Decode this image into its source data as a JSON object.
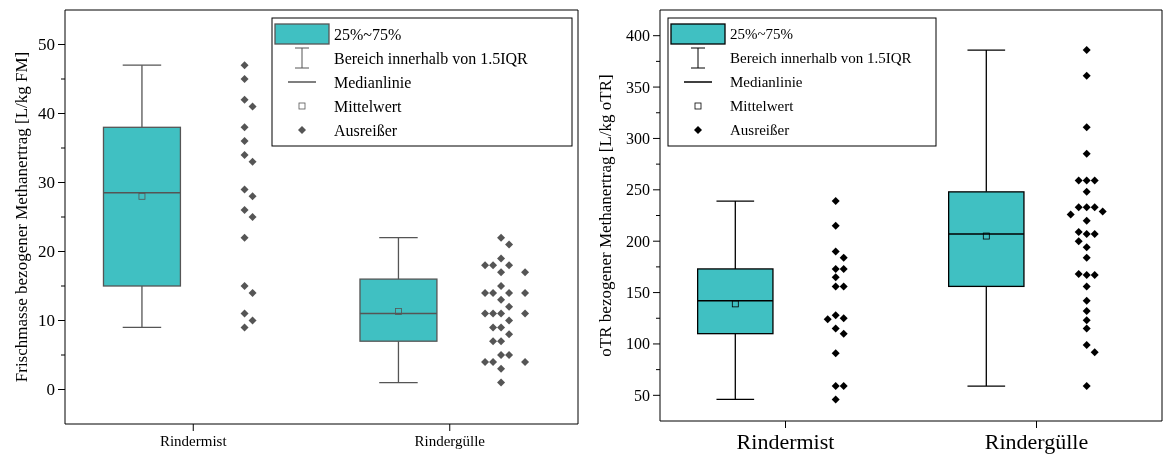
{
  "chart_data": [
    {
      "type": "box",
      "ylabel": "Frischmasse bezogener Methanertrag [L/kg FM]",
      "categories": [
        "Rindermist",
        "Rindergülle"
      ],
      "ylim": [
        -5,
        55
      ],
      "yticks": [
        0,
        {
          "value": 5,
          "label": null
        },
        10,
        {
          "value": 15,
          "label": null
        },
        20,
        {
          "value": 25,
          "label": null
        },
        30,
        {
          "value": 35,
          "label": null
        },
        40,
        {
          "value": 45,
          "label": null
        },
        50
      ],
      "legend": "top right",
      "marker": "diamond",
      "annotations": [
        "Bereich innerhalb von 1.5IQR",
        "Medianlinie",
        "Mittelwert"
      ],
      "series": [
        {
          "name": "25%~75%",
          "color": "#40c0c2",
          "boxes": [
            {
              "low": 9,
              "q1": 15,
              "median": 28.5,
              "q3": 38,
              "high": 47,
              "mean": 28
            },
            {
              "low": 1,
              "q1": 7,
              "median": 11,
              "q3": 16,
              "high": 22,
              "mean": 11.3
            }
          ]
        },
        {
          "type": "scatter",
          "name": "Ausreißer",
          "color": "#555555",
          "x": [
            "Rindermist",
            "Rindermist",
            "Rindermist",
            "Rindermist",
            "Rindermist",
            "Rindermist",
            "Rindermist",
            "Rindermist",
            "Rindermist",
            "Rindermist",
            "Rindermist",
            "Rindermist",
            "Rindermist",
            "Rindermist",
            "Rindermist",
            "Rindermist",
            "Rindermist",
            "Rindermist",
            "Rindergülle",
            "Rindergülle",
            "Rindergülle",
            "Rindergülle",
            "Rindergülle",
            "Rindergülle",
            "Rindergülle",
            "Rindergülle",
            "Rindergülle",
            "Rindergülle",
            "Rindergülle",
            "Rindergülle",
            "Rindergülle",
            "Rindergülle",
            "Rindergülle",
            "Rindergülle",
            "Rindergülle",
            "Rindergülle",
            "Rindergülle",
            "Rindergülle",
            "Rindergülle",
            "Rindergülle",
            "Rindergülle",
            "Rindergülle",
            "Rindergülle",
            "Rindergülle",
            "Rindergülle",
            "Rindergülle",
            "Rindergülle",
            "Rindergülle",
            "Rindergülle",
            "Rindergülle"
          ],
          "values": [
            47,
            45,
            42,
            41,
            38,
            36,
            34,
            33,
            29,
            28,
            26,
            25,
            22,
            15,
            14,
            11,
            10,
            9,
            22,
            21,
            19,
            18,
            18,
            18,
            17,
            17,
            15,
            14,
            14,
            14,
            14,
            13,
            12,
            11,
            11,
            11,
            11,
            10,
            9,
            9,
            8,
            7,
            7,
            5,
            5,
            4,
            4,
            4,
            3,
            1
          ]
        }
      ]
    },
    {
      "type": "box",
      "ylabel": "oTR bezogener Methanertrag [L/kg oTR]",
      "categories": [
        "Rindermist",
        "Rindergülle"
      ],
      "ylim": [
        25,
        425
      ],
      "yticks": [
        50,
        {
          "value": 75,
          "label": null
        },
        100,
        {
          "value": 125,
          "label": null
        },
        150,
        {
          "value": 175,
          "label": null
        },
        200,
        {
          "value": 225,
          "label": null
        },
        250,
        {
          "value": 275,
          "label": null
        },
        300,
        {
          "value": 325,
          "label": null
        },
        350,
        {
          "value": 375,
          "label": null
        },
        400
      ],
      "legend": "top left",
      "marker": "diamond",
      "annotations": [
        "Bereich innerhalb von 1.5IQR",
        "Medianlinie",
        "Mittelwert"
      ],
      "series": [
        {
          "name": "25%~75%",
          "color": "#40c0c2",
          "boxes": [
            {
              "low": 46,
              "q1": 110,
              "median": 142,
              "q3": 173,
              "high": 239,
              "mean": 139
            },
            {
              "low": 59,
              "q1": 156,
              "median": 207,
              "q3": 248,
              "high": 386,
              "mean": 205
            }
          ]
        },
        {
          "type": "scatter",
          "name": "Ausreißer",
          "color": "#000000",
          "x": [
            "Rindermist",
            "Rindermist",
            "Rindermist",
            "Rindermist",
            "Rindermist",
            "Rindermist",
            "Rindermist",
            "Rindermist",
            "Rindermist",
            "Rindermist",
            "Rindermist",
            "Rindermist",
            "Rindermist",
            "Rindermist",
            "Rindermist",
            "Rindermist",
            "Rindermist",
            "Rindermist",
            "Rindergülle",
            "Rindergülle",
            "Rindergülle",
            "Rindergülle",
            "Rindergülle",
            "Rindergülle",
            "Rindergülle",
            "Rindergülle",
            "Rindergülle",
            "Rindergülle",
            "Rindergülle",
            "Rindergülle",
            "Rindergülle",
            "Rindergülle",
            "Rindergülle",
            "Rindergülle",
            "Rindergülle",
            "Rindergülle",
            "Rindergülle",
            "Rindergülle",
            "Rindergülle",
            "Rindergülle",
            "Rindergülle",
            "Rindergülle",
            "Rindergülle",
            "Rindergülle",
            "Rindergülle",
            "Rindergülle",
            "Rindergülle",
            "Rindergülle",
            "Rindergülle"
          ],
          "values": [
            239,
            215,
            190,
            184,
            173,
            173,
            165,
            156,
            156,
            128,
            125,
            124,
            115,
            110,
            91,
            59,
            59,
            46,
            386,
            361,
            311,
            285,
            259,
            259,
            259,
            248,
            233,
            233,
            233,
            229,
            226,
            220,
            207,
            207,
            209,
            200,
            194,
            184,
            167,
            167,
            168,
            156,
            142,
            132,
            123,
            115,
            99,
            92,
            59
          ]
        }
      ]
    }
  ]
}
